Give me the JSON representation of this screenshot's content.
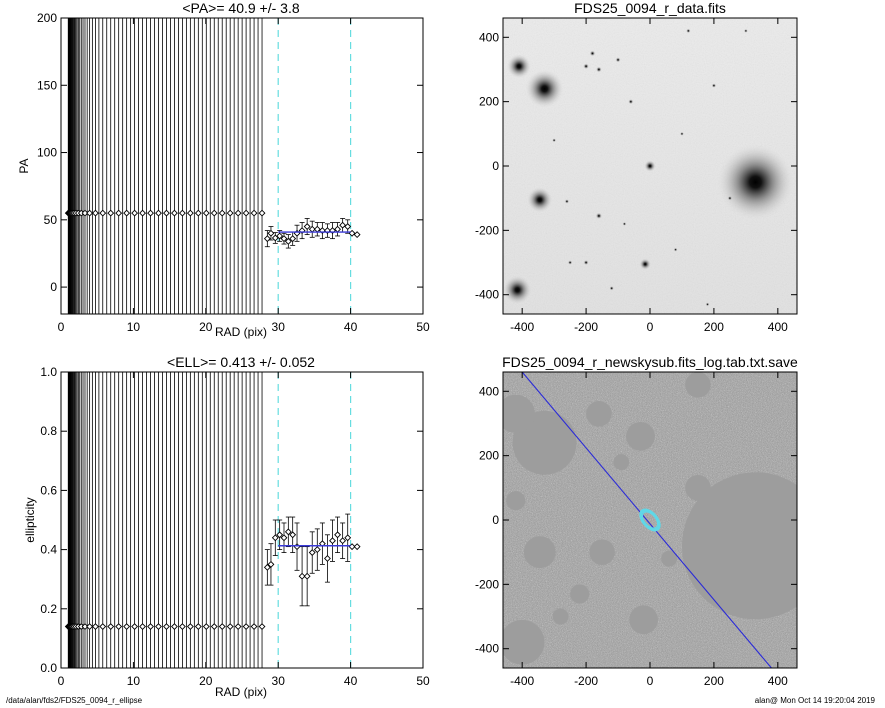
{
  "footer": {
    "path": "/data/alan/fds2/FDS25_0094_r_ellipse",
    "stamp": "alan@  Mon Oct 14 19:20:04 2019"
  },
  "colors": {
    "errorbar": "#000000",
    "fit_line": "#3a3ad8",
    "limit_line": "#66dde0",
    "marker": "#000000",
    "image_bg_top": "#ececec",
    "image_bg_bottom": "#8c8c8c",
    "ellipse": "#5fd8e8",
    "pa_line": "#2a2ad8"
  },
  "chart_data": [
    {
      "id": "pa",
      "type": "scatter",
      "title": "<PA>=  40.9 +/-   3.8",
      "xlabel": "RAD (pix)",
      "ylabel": "PA",
      "xlim": [
        0,
        50
      ],
      "ylim": [
        -20,
        200
      ],
      "xticks": [
        "0",
        "10",
        "20",
        "30",
        "40",
        "50"
      ],
      "yticks": [
        "0",
        "50",
        "100",
        "150",
        "200"
      ],
      "xtick_values": [
        0,
        10,
        20,
        30,
        40,
        50
      ],
      "ytick_values": [
        0,
        50,
        100,
        150,
        200
      ],
      "inner_profile": {
        "y": 55,
        "r_start": 1.0,
        "r_end": 27.8,
        "growth": 1.12,
        "y_lo": -20,
        "y_hi": 200
      },
      "points": [
        {
          "x": 28.5,
          "y": 36,
          "err": 6
        },
        {
          "x": 29.0,
          "y": 40,
          "err": 5
        },
        {
          "x": 29.6,
          "y": 36.5,
          "err": 4
        },
        {
          "x": 30.2,
          "y": 38,
          "err": 4
        },
        {
          "x": 30.8,
          "y": 36,
          "err": 4
        },
        {
          "x": 31.4,
          "y": 34,
          "err": 5
        },
        {
          "x": 32.0,
          "y": 36,
          "err": 5
        },
        {
          "x": 32.6,
          "y": 40,
          "err": 6
        },
        {
          "x": 33.3,
          "y": 42,
          "err": 6
        },
        {
          "x": 34.0,
          "y": 45,
          "err": 6
        },
        {
          "x": 34.7,
          "y": 43,
          "err": 6
        },
        {
          "x": 35.4,
          "y": 43,
          "err": 5
        },
        {
          "x": 36.1,
          "y": 42,
          "err": 6
        },
        {
          "x": 36.8,
          "y": 42,
          "err": 5
        },
        {
          "x": 37.5,
          "y": 42,
          "err": 6
        },
        {
          "x": 38.2,
          "y": 43,
          "err": 5
        },
        {
          "x": 38.9,
          "y": 46,
          "err": 5
        },
        {
          "x": 39.6,
          "y": 45,
          "err": 5
        },
        {
          "x": 40.2,
          "y": 40,
          "err": 0
        },
        {
          "x": 40.9,
          "y": 39,
          "err": 0
        }
      ],
      "fit": {
        "value": 40.9,
        "x_start": 30,
        "x_end": 40
      },
      "vlines": [
        30,
        40
      ]
    },
    {
      "id": "ell",
      "type": "scatter",
      "title": "<ELL>= 0.413 +/-  0.052",
      "xlabel": "RAD (pix)",
      "ylabel": "ellipticity",
      "xlim": [
        0,
        50
      ],
      "ylim": [
        0.0,
        1.0
      ],
      "xticks": [
        "0",
        "10",
        "20",
        "30",
        "40",
        "50"
      ],
      "yticks": [
        "0.0",
        "0.2",
        "0.4",
        "0.6",
        "0.8",
        "1.0"
      ],
      "xtick_values": [
        0,
        10,
        20,
        30,
        40,
        50
      ],
      "ytick_values": [
        0.0,
        0.2,
        0.4,
        0.6,
        0.8,
        1.0
      ],
      "inner_profile": {
        "y": 0.14,
        "r_start": 1.0,
        "r_end": 27.8,
        "growth": 1.12,
        "y_lo": 0.0,
        "y_hi": 1.0
      },
      "points": [
        {
          "x": 28.5,
          "y": 0.34,
          "err": 0.06
        },
        {
          "x": 29.0,
          "y": 0.35,
          "err": 0.07
        },
        {
          "x": 29.6,
          "y": 0.44,
          "err": 0.06
        },
        {
          "x": 30.2,
          "y": 0.45,
          "err": 0.05
        },
        {
          "x": 30.8,
          "y": 0.44,
          "err": 0.05
        },
        {
          "x": 31.4,
          "y": 0.46,
          "err": 0.05
        },
        {
          "x": 32.0,
          "y": 0.45,
          "err": 0.06
        },
        {
          "x": 32.6,
          "y": 0.41,
          "err": 0.08
        },
        {
          "x": 33.3,
          "y": 0.31,
          "err": 0.1
        },
        {
          "x": 34.0,
          "y": 0.31,
          "err": 0.1
        },
        {
          "x": 34.7,
          "y": 0.39,
          "err": 0.07
        },
        {
          "x": 35.4,
          "y": 0.4,
          "err": 0.07
        },
        {
          "x": 36.1,
          "y": 0.42,
          "err": 0.07
        },
        {
          "x": 36.8,
          "y": 0.37,
          "err": 0.08
        },
        {
          "x": 37.5,
          "y": 0.43,
          "err": 0.07
        },
        {
          "x": 38.2,
          "y": 0.45,
          "err": 0.06
        },
        {
          "x": 38.9,
          "y": 0.43,
          "err": 0.06
        },
        {
          "x": 39.6,
          "y": 0.44,
          "err": 0.08
        },
        {
          "x": 40.2,
          "y": 0.41,
          "err": 0.0
        },
        {
          "x": 40.9,
          "y": 0.41,
          "err": 0.0
        }
      ],
      "fit": {
        "value": 0.413,
        "x_start": 30,
        "x_end": 40
      },
      "vlines": [
        30,
        40
      ]
    }
  ],
  "images": [
    {
      "id": "data",
      "title": "FDS25_0094_r_data.fits",
      "xlim": [
        -460,
        460
      ],
      "ylim": [
        -460,
        460
      ],
      "xticks": [
        "-400",
        "-200",
        "0",
        "200",
        "400"
      ],
      "yticks": [
        "-400",
        "-200",
        "0",
        "200",
        "400"
      ],
      "xtick_values": [
        -400,
        -200,
        0,
        200,
        400
      ],
      "ytick_values": [
        -400,
        -200,
        0,
        200,
        400
      ],
      "sources": [
        {
          "x": 330,
          "y": -50,
          "size": 120
        },
        {
          "x": -330,
          "y": 240,
          "size": 60
        },
        {
          "x": -410,
          "y": 310,
          "size": 38
        },
        {
          "x": -345,
          "y": -105,
          "size": 40
        },
        {
          "x": -415,
          "y": -385,
          "size": 45
        },
        {
          "x": -15,
          "y": -305,
          "size": 18
        },
        {
          "x": 0,
          "y": 0,
          "size": 18
        },
        {
          "x": -160,
          "y": -155,
          "size": 10
        },
        {
          "x": -180,
          "y": 350,
          "size": 9
        },
        {
          "x": -160,
          "y": 300,
          "size": 9
        },
        {
          "x": -200,
          "y": 310,
          "size": 9
        },
        {
          "x": -100,
          "y": 330,
          "size": 8
        },
        {
          "x": -60,
          "y": 200,
          "size": 8
        },
        {
          "x": -200,
          "y": -300,
          "size": 8
        },
        {
          "x": -260,
          "y": -110,
          "size": 7
        },
        {
          "x": -250,
          "y": -300,
          "size": 7
        },
        {
          "x": 250,
          "y": -100,
          "size": 7
        },
        {
          "x": 200,
          "y": 250,
          "size": 7
        },
        {
          "x": 120,
          "y": 420,
          "size": 7
        },
        {
          "x": -120,
          "y": -380,
          "size": 7
        },
        {
          "x": 80,
          "y": -260,
          "size": 6
        },
        {
          "x": 180,
          "y": -430,
          "size": 6
        },
        {
          "x": -300,
          "y": 80,
          "size": 6
        },
        {
          "x": 300,
          "y": 420,
          "size": 6
        },
        {
          "x": -80,
          "y": -180,
          "size": 6
        },
        {
          "x": 100,
          "y": 100,
          "size": 6
        }
      ]
    },
    {
      "id": "mask",
      "title": "FDS25_0094_r_newskysub.fits_log.tab.txt.save",
      "xlim": [
        -460,
        460
      ],
      "ylim": [
        -460,
        460
      ],
      "xticks": [
        "-400",
        "-200",
        "0",
        "200",
        "400"
      ],
      "yticks": [
        "-400",
        "-200",
        "0",
        "200",
        "400"
      ],
      "xtick_values": [
        -400,
        -200,
        0,
        200,
        400
      ],
      "ytick_values": [
        -400,
        -200,
        0,
        200,
        400
      ],
      "masks": [
        {
          "x": 330,
          "y": -80,
          "r": 230
        },
        {
          "x": -330,
          "y": 240,
          "r": 100
        },
        {
          "x": -420,
          "y": 330,
          "r": 60
        },
        {
          "x": -400,
          "y": -380,
          "r": 70
        },
        {
          "x": -345,
          "y": -100,
          "r": 50
        },
        {
          "x": -150,
          "y": -100,
          "r": 40
        },
        {
          "x": -20,
          "y": -310,
          "r": 45
        },
        {
          "x": -160,
          "y": 330,
          "r": 40
        },
        {
          "x": -30,
          "y": 260,
          "r": 45
        },
        {
          "x": 150,
          "y": 420,
          "r": 40
        },
        {
          "x": 150,
          "y": 100,
          "r": 40
        },
        {
          "x": -220,
          "y": -230,
          "r": 30
        },
        {
          "x": -90,
          "y": 180,
          "r": 25
        },
        {
          "x": -420,
          "y": 60,
          "r": 30
        },
        {
          "x": 60,
          "y": -120,
          "r": 25
        },
        {
          "x": -280,
          "y": -300,
          "r": 25
        }
      ],
      "ellipses": {
        "pa": 40.9,
        "ell": 0.413,
        "radii": [
          30,
          34,
          37,
          40
        ]
      },
      "pa_line": {
        "x1": -400,
        "y1": 460,
        "x2": 380,
        "y2": -460
      }
    }
  ]
}
